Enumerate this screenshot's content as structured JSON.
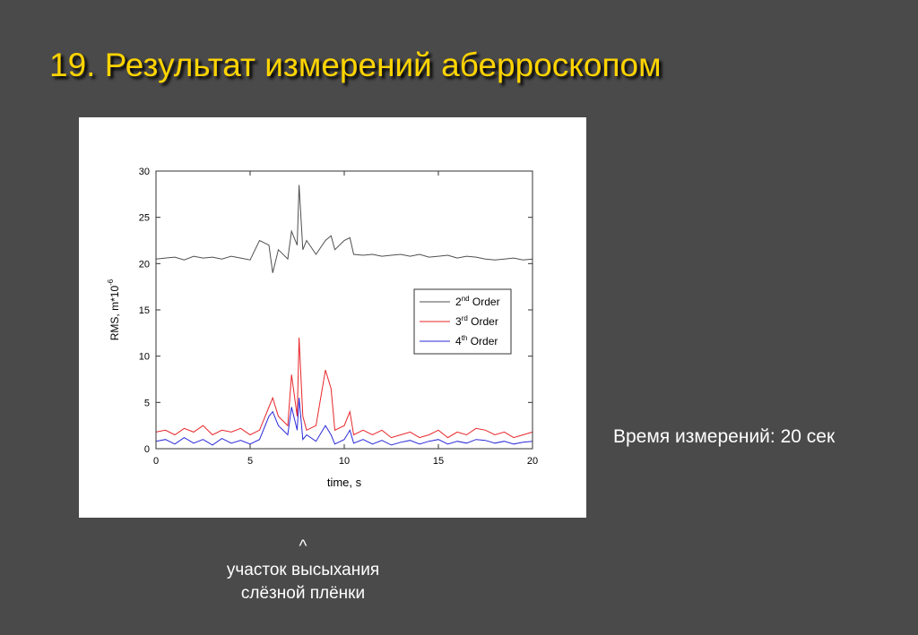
{
  "slide": {
    "title": "19. Результат измерений аберроскопом",
    "side_note": "Время измерений: 20 сек",
    "caption_caret": "^",
    "caption_line1": "участок высыхания",
    "caption_line2": "слёзной плёнки"
  },
  "colors": {
    "background": "#4a4a4a",
    "title": "#ffd400",
    "text": "#ffffff",
    "order2": "#505050",
    "order3": "#e8262a",
    "order4": "#2b2bd9"
  },
  "chart_data": {
    "type": "line",
    "title": "",
    "xlabel": "time, s",
    "ylabel": {
      "base": "RMS, m*10",
      "sup": "-6"
    },
    "xlim": [
      0,
      20
    ],
    "ylim": [
      0,
      30
    ],
    "xticks": [
      0,
      5,
      10,
      15,
      20
    ],
    "yticks": [
      0,
      5,
      10,
      15,
      20,
      25,
      30
    ],
    "grid": false,
    "legend_position": "center-right",
    "x": [
      0,
      0.5,
      1,
      1.5,
      2,
      2.5,
      3,
      3.5,
      4,
      4.5,
      5,
      5.5,
      6,
      6.2,
      6.5,
      7,
      7.2,
      7.5,
      7.6,
      7.8,
      8,
      8.5,
      9,
      9.3,
      9.5,
      10,
      10.3,
      10.5,
      11,
      11.5,
      12,
      12.5,
      13,
      13.5,
      14,
      14.5,
      15,
      15.5,
      16,
      16.5,
      17,
      17.5,
      18,
      18.5,
      19,
      19.5,
      20
    ],
    "series": [
      {
        "name": "2",
        "name_sup": "nd",
        "name_suffix": " Order",
        "color": "#505050",
        "values": [
          20.5,
          20.6,
          20.7,
          20.4,
          20.8,
          20.6,
          20.7,
          20.5,
          20.8,
          20.6,
          20.4,
          22.5,
          22,
          19,
          21.5,
          20.5,
          23.5,
          22,
          28.5,
          21.5,
          22.5,
          21,
          22.5,
          23,
          21.5,
          22.5,
          22.8,
          21,
          20.9,
          21,
          20.8,
          20.9,
          21,
          20.8,
          21,
          20.7,
          20.8,
          20.9,
          20.6,
          20.8,
          20.7,
          20.5,
          20.4,
          20.5,
          20.6,
          20.4,
          20.5
        ]
      },
      {
        "name": "3",
        "name_sup": "rd",
        "name_suffix": " Order",
        "color": "#e8262a",
        "values": [
          1.8,
          2,
          1.5,
          2.2,
          1.8,
          2.5,
          1.5,
          2,
          1.8,
          2.2,
          1.5,
          2,
          4.5,
          5.5,
          3.5,
          2.5,
          8,
          3.5,
          12,
          3.5,
          2,
          2.5,
          8.5,
          6.5,
          2,
          2.5,
          4,
          1.5,
          2,
          1.5,
          2,
          1.2,
          1.5,
          1.8,
          1.2,
          1.5,
          2,
          1.2,
          1.8,
          1.5,
          2.2,
          2,
          1.5,
          1.8,
          1.2,
          1.5,
          1.8
        ]
      },
      {
        "name": "4",
        "name_sup": "th",
        "name_suffix": " Order",
        "color": "#2b2bd9",
        "values": [
          0.8,
          1,
          0.5,
          1.2,
          0.6,
          1,
          0.4,
          1.1,
          0.6,
          0.9,
          0.5,
          1,
          3.5,
          4,
          2.5,
          1.5,
          4.5,
          2,
          5.5,
          1,
          1.5,
          0.8,
          2.5,
          1.5,
          0.5,
          1,
          2,
          0.6,
          1,
          0.5,
          0.9,
          0.4,
          0.7,
          0.9,
          0.5,
          0.8,
          1,
          0.5,
          0.8,
          0.6,
          1,
          0.9,
          0.6,
          0.8,
          0.5,
          0.7,
          0.8
        ]
      }
    ]
  }
}
